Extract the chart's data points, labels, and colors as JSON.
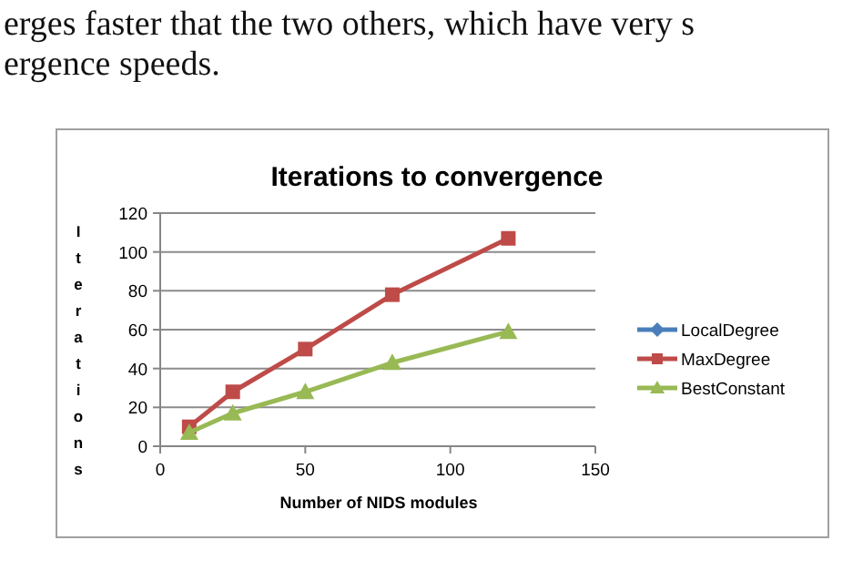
{
  "chart_data": {
    "type": "line",
    "title": "Iterations to convergence",
    "xlabel": "Number of NIDS modules",
    "ylabel": "Iterations",
    "annotations": [
      "erges faster that the two others, which have very s",
      "ergence speeds."
    ],
    "x": [
      10,
      25,
      50,
      80,
      120
    ],
    "series": [
      {
        "name": "LocalDegree",
        "color": "#4a7ebb",
        "marker": "diamond",
        "values": [
          null,
          null,
          null,
          null,
          null
        ]
      },
      {
        "name": "MaxDegree",
        "color": "#be4b48",
        "marker": "square",
        "values": [
          10,
          28,
          50,
          78,
          107
        ]
      },
      {
        "name": "BestConstant",
        "color": "#98b954",
        "marker": "triangle",
        "values": [
          7,
          17,
          28,
          43,
          59
        ]
      }
    ],
    "xlim": [
      0,
      150
    ],
    "xticks": [
      0,
      50,
      100,
      150
    ],
    "ylim": [
      0,
      120
    ],
    "yticks": [
      0,
      20,
      40,
      60,
      80,
      100,
      120
    ],
    "grid": "y",
    "legend": "right"
  }
}
